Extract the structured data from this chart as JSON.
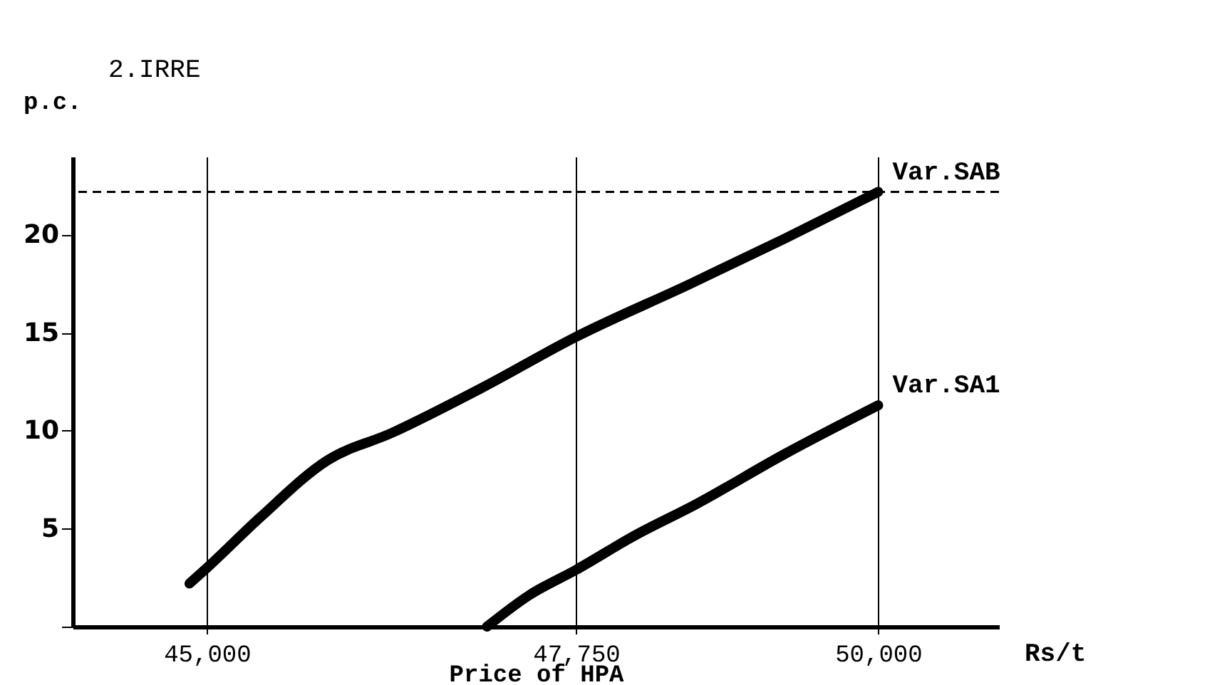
{
  "chart_data": {
    "type": "line",
    "title": "2.IRRE",
    "xlabel": "Price of HPA",
    "ylabel": "p.c.",
    "annotations": [
      "Rs/t"
    ],
    "xlim": [
      44000,
      50900
    ],
    "ylim": [
      0,
      24
    ],
    "xticks": [
      {
        "value": 45000,
        "label": "45,000"
      },
      {
        "value": 47750,
        "label": "47,750"
      },
      {
        "value": 50000,
        "label": "50,000"
      }
    ],
    "yticks": [
      {
        "value": 0,
        "label": null
      },
      5,
      10,
      15,
      20
    ],
    "grid": "x",
    "legend": false,
    "marker": "none",
    "line_style": "solid",
    "ref_lines": [
      {
        "axis": "y",
        "value": 22.2,
        "label": null,
        "color": "#000000",
        "line_style": "dashed"
      }
    ],
    "series": [
      {
        "name": "Var.SAB",
        "color": "#000000",
        "x": [
          44870,
          45000,
          45400,
          45900,
          46380,
          47050,
          47750,
          48600,
          49300,
          50000
        ],
        "values": [
          2.2,
          3.0,
          5.6,
          8.5,
          9.9,
          12.2,
          14.8,
          17.5,
          19.8,
          22.2
        ]
      },
      {
        "name": "Var.SA1",
        "color": "#000000",
        "x": [
          47086,
          47400,
          47750,
          48200,
          48630,
          49300,
          50000
        ],
        "values": [
          0,
          1.6,
          2.9,
          4.7,
          6.2,
          8.8,
          11.3
        ]
      }
    ]
  }
}
